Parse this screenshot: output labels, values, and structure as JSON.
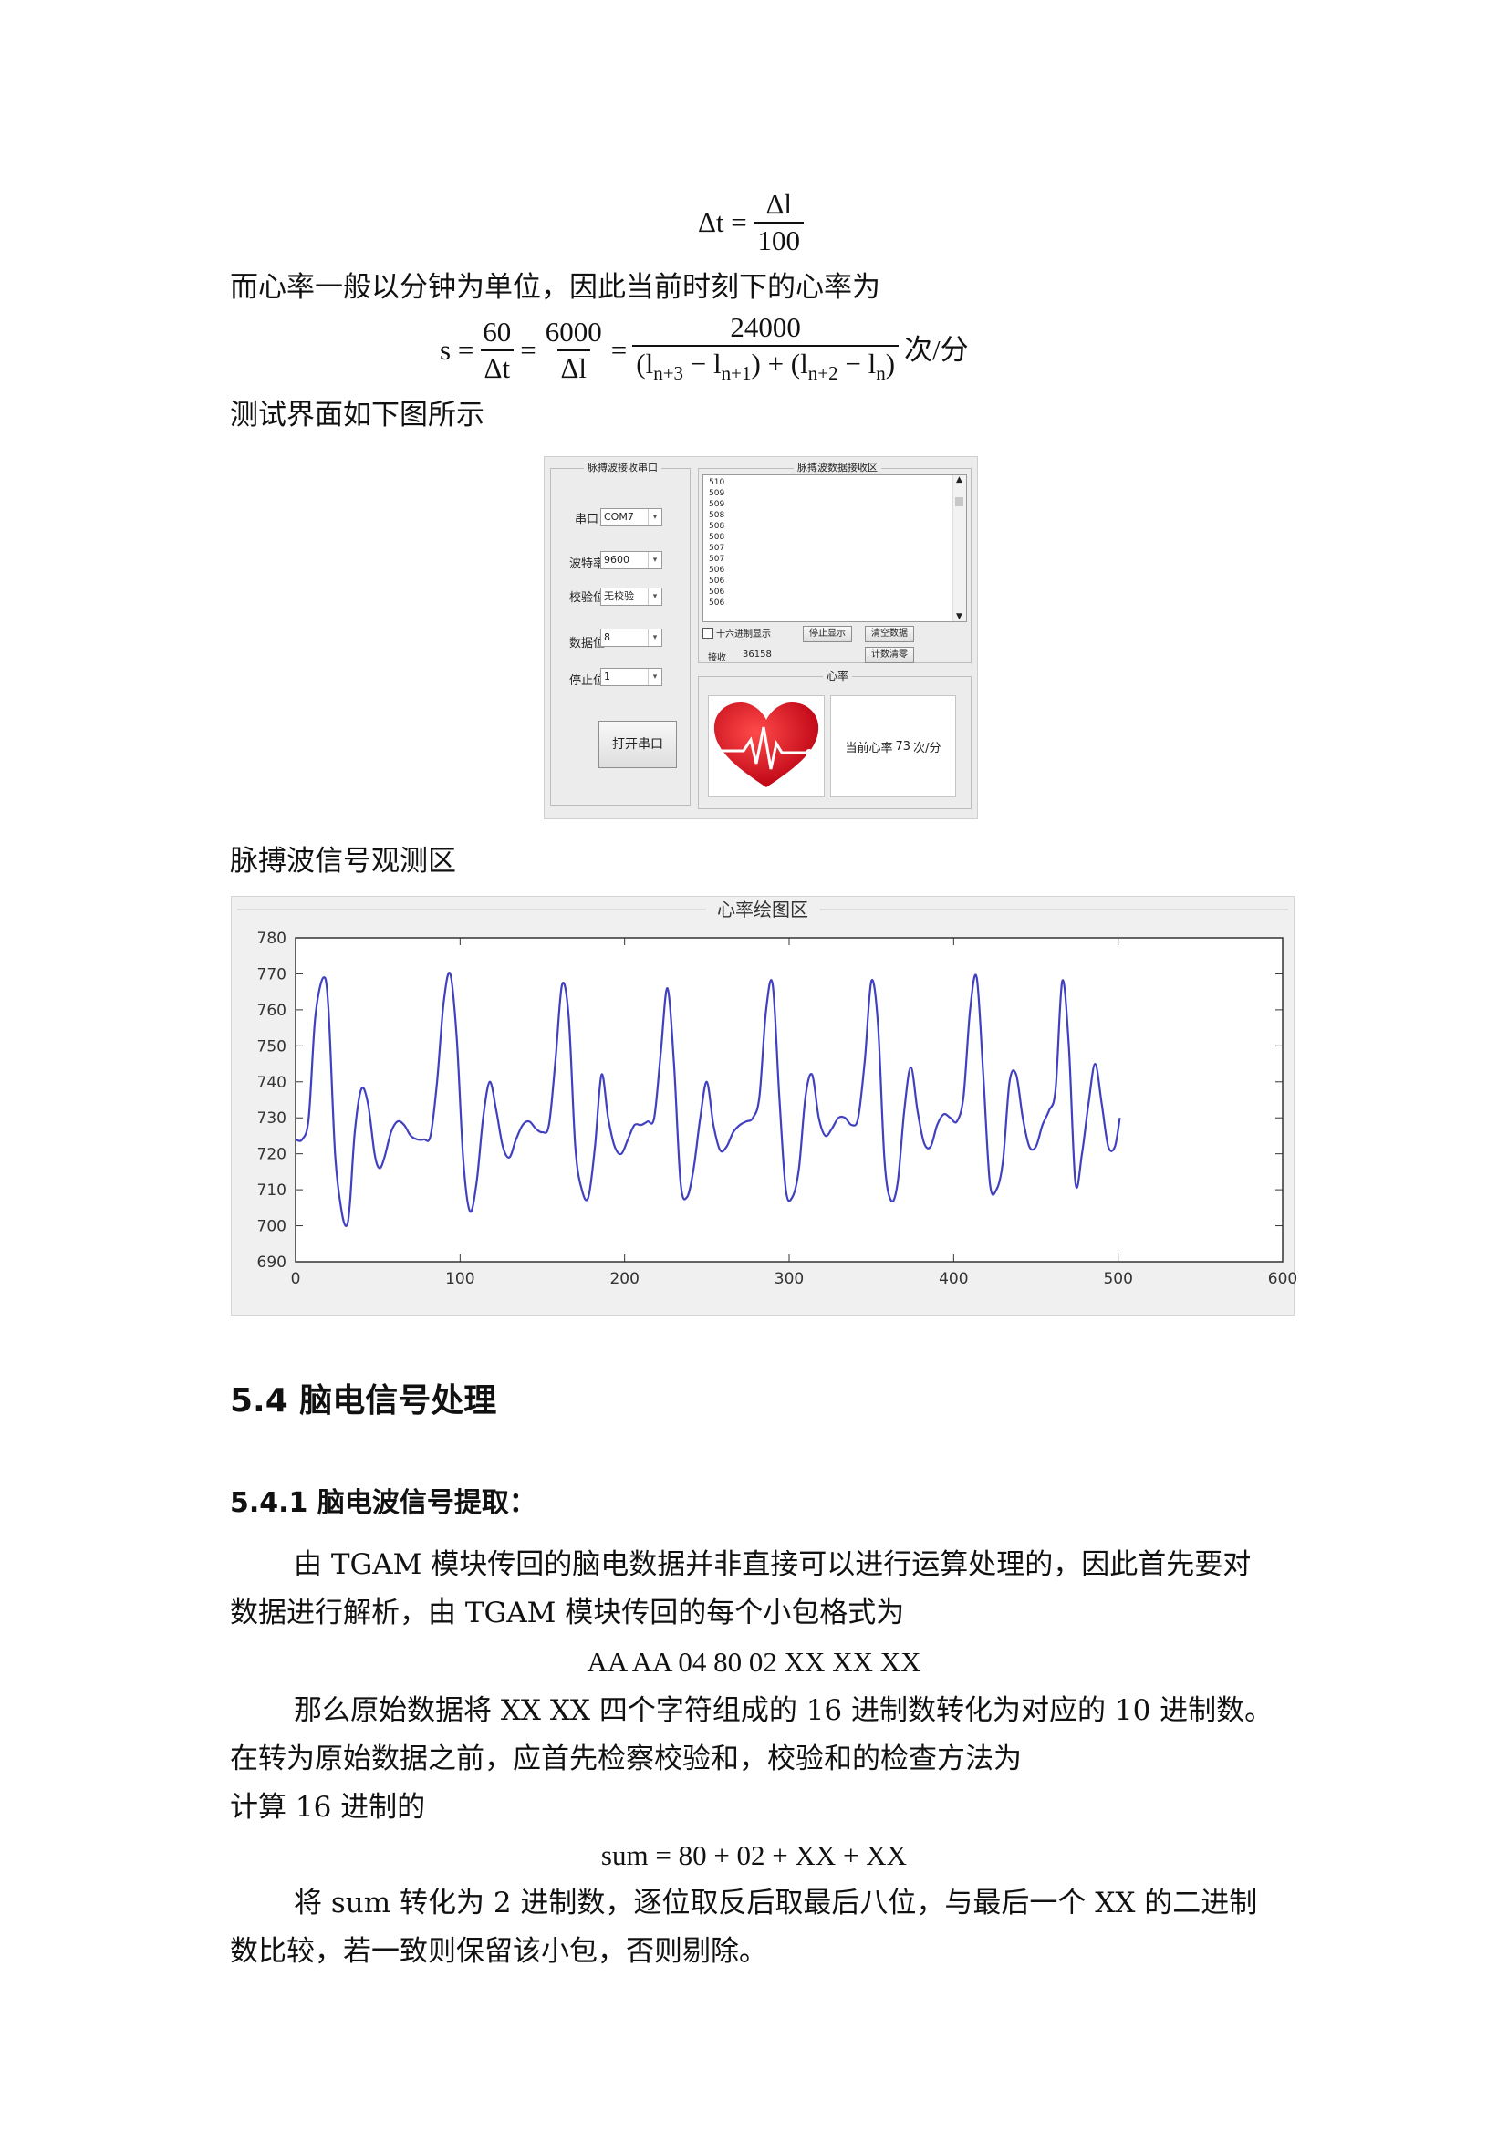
{
  "formula1": {
    "lhs": "Δt =",
    "num": "Δl",
    "den": "100"
  },
  "para_heartrate": "而心率一般以分钟为单位，因此当前时刻下的心率为",
  "formula2": {
    "lhs": "s =",
    "f1_num": "60",
    "f1_den": "Δt",
    "f2_num": "6000",
    "f2_den": "Δl",
    "f3_num": "24000",
    "f3_den_a": "(l",
    "sub_a": "n+3",
    "f3_den_b": " − l",
    "sub_b": "n+1",
    "f3_den_c": ") + (l",
    "sub_c": "n+2",
    "f3_den_d": " − l",
    "sub_d": "n",
    "f3_den_e": ")",
    "unit": "次/分"
  },
  "para_ui_intro": "测试界面如下图所示",
  "ui": {
    "serial_group_title": "脉搏波接收串口",
    "receive_group_title": "脉搏波数据接收区",
    "heart_group_title": "心率",
    "port_label": "串口",
    "port_value": "COM7",
    "baud_label": "波特率",
    "baud_value": "9600",
    "parity_label": "校验位",
    "parity_value": "无校验",
    "databits_label": "数据位",
    "databits_value": "8",
    "stopbits_label": "停止位",
    "stopbits_value": "1",
    "open_button": "打开串口",
    "list_rows": [
      "510",
      "509",
      "509",
      "508",
      "508",
      "508",
      "507",
      "507",
      "506",
      "506",
      "506",
      "506"
    ],
    "hex_label": "十六进制显示",
    "stop_button": "停止显示",
    "clear_button": "清空数据",
    "reset_count_button": "计数清零",
    "receive_label": "接收",
    "receive_count": "36158",
    "heart_rate_prefix": "当前心率",
    "heart_rate_value": "73",
    "heart_rate_unit": "次/分"
  },
  "para_observe": "脉搏波信号观测区",
  "chart_data": {
    "type": "line",
    "title": "心率绘图区",
    "xlim": [
      0,
      600
    ],
    "ylim": [
      690,
      780
    ],
    "xticks": [
      0,
      100,
      200,
      300,
      400,
      500,
      600
    ],
    "yticks": [
      690,
      700,
      710,
      720,
      730,
      740,
      750,
      760,
      770,
      780
    ],
    "xtick_labels": [
      "0",
      "100",
      "200",
      "300",
      "400",
      "500",
      "600"
    ],
    "ytick_labels": [
      "690",
      "700",
      "710",
      "720",
      "730",
      "740",
      "750",
      "760",
      "770",
      "780"
    ],
    "line_color": "#4040c0",
    "grid": false,
    "series": [
      {
        "x": [
          0,
          4,
          8,
          12,
          17,
          20,
          24,
          28,
          31,
          33,
          36,
          40,
          44,
          48,
          51,
          54,
          58,
          62,
          66,
          70,
          74,
          78,
          82,
          86,
          90,
          94,
          98,
          102,
          106,
          110,
          114,
          118,
          122,
          126,
          130,
          134,
          138,
          142,
          146,
          150,
          154,
          158,
          162,
          166,
          170,
          174,
          178,
          182,
          186,
          190,
          194,
          198,
          202,
          206,
          210,
          214,
          218,
          222,
          226,
          230,
          234,
          238,
          242,
          246,
          250,
          254,
          258,
          262,
          266,
          270,
          274,
          278,
          282,
          286,
          290,
          294,
          298,
          302,
          306,
          310,
          314,
          318,
          322,
          326,
          330,
          334,
          338,
          342,
          346,
          350,
          354,
          358,
          362,
          366,
          370,
          374,
          378,
          382,
          386,
          390,
          394,
          398,
          402,
          406,
          410,
          414,
          418,
          422,
          426,
          430,
          434,
          438,
          442,
          446,
          450,
          454,
          458,
          462,
          466,
          470,
          474,
          478,
          482,
          486,
          490,
          494,
          498,
          501
        ],
        "y": [
          724,
          724,
          730,
          758,
          769,
          760,
          720,
          704,
          700,
          706,
          726,
          738,
          734,
          720,
          716,
          719,
          726,
          729,
          728,
          725,
          724,
          724,
          725,
          740,
          762,
          770,
          752,
          718,
          704,
          712,
          730,
          740,
          732,
          722,
          719,
          724,
          728,
          729,
          727,
          726,
          728,
          746,
          767,
          758,
          722,
          710,
          708,
          722,
          742,
          730,
          722,
          720,
          724,
          728,
          728,
          729,
          730,
          748,
          766,
          745,
          712,
          708,
          716,
          730,
          740,
          728,
          721,
          722,
          726,
          728,
          729,
          730,
          736,
          760,
          767,
          736,
          710,
          708,
          716,
          736,
          742,
          730,
          725,
          727,
          730,
          730,
          728,
          730,
          746,
          768,
          756,
          718,
          707,
          712,
          732,
          744,
          732,
          723,
          722,
          728,
          731,
          730,
          729,
          736,
          760,
          769,
          742,
          712,
          710,
          718,
          740,
          742,
          730,
          722,
          722,
          728,
          732,
          738,
          768,
          750,
          712,
          720,
          734,
          745,
          734,
          722,
          722,
          730
        ]
      }
    ]
  },
  "heading_54": "5.4 脑电信号处理",
  "heading_541": "5.4.1 脑电波信号提取：",
  "para_541_line1": "由 TGAM 模块传回的脑电数据并非直接可以进行运算处理的，因此首先要对",
  "para_541_line2": "数据进行解析，由 TGAM 模块传回的每个小包格式为",
  "packet_format": "AA AA 04 80 02 XX XX XX",
  "para_convert_line1": "那么原始数据将 XX XX 四个字符组成的 16 进制数转化为对应的 10 进制数。",
  "para_convert_line2": "在转为原始数据之前，应首先检察校验和，校验和的检查方法为",
  "para_convert_line3": "计算 16 进制的",
  "sum_formula": "sum = 80 + 02 + XX + XX",
  "para_sum_line1": "将 sum 转化为 2 进制数，逐位取反后取最后八位，与最后一个 XX 的二进制",
  "para_sum_line2": "数比较，若一致则保留该小包，否则剔除。"
}
